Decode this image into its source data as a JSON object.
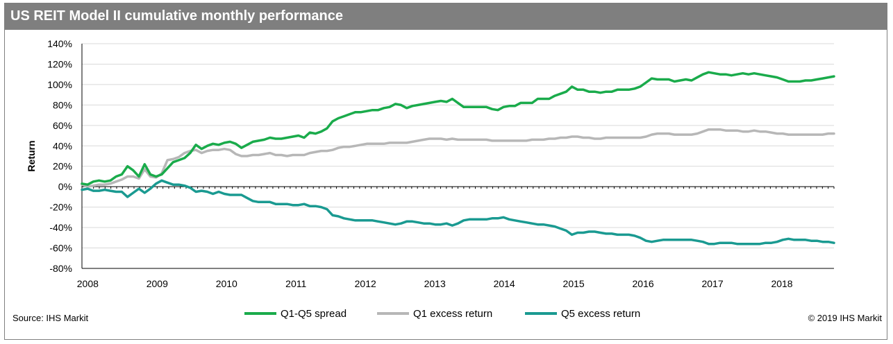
{
  "title": "US REIT Model II cumulative monthly performance",
  "source": "Source: IHS Markit",
  "copyright": "© 2019 IHS Markit",
  "colors": {
    "spread": "#1aab4b",
    "q1": "#b7b7b7",
    "q5": "#1a9a91",
    "title_bg": "#7f7f7f",
    "grid": "#d9d9d9"
  },
  "chart_data": {
    "type": "line",
    "ylabel": "Return",
    "xlabel": "",
    "ylim": [
      -0.8,
      1.4
    ],
    "yticks": [
      "140%",
      "120%",
      "100%",
      "80%",
      "60%",
      "40%",
      "20%",
      "0%",
      "-20%",
      "-40%",
      "-60%",
      "-80%"
    ],
    "xticks": [
      "2008",
      "2009",
      "2010",
      "2011",
      "2012",
      "2013",
      "2014",
      "2015",
      "2016",
      "2017",
      "2018"
    ],
    "grid": true,
    "legend_position": "bottom",
    "x_start": "2007-12",
    "x_end": "2018-10",
    "series": [
      {
        "name": "Q1-Q5 spread",
        "color": "#1aab4b",
        "values": [
          0.03,
          0.02,
          0.05,
          0.06,
          0.05,
          0.06,
          0.1,
          0.12,
          0.2,
          0.16,
          0.1,
          0.22,
          0.12,
          0.1,
          0.12,
          0.18,
          0.24,
          0.26,
          0.28,
          0.33,
          0.41,
          0.37,
          0.4,
          0.42,
          0.41,
          0.43,
          0.44,
          0.42,
          0.38,
          0.41,
          0.44,
          0.45,
          0.46,
          0.48,
          0.47,
          0.47,
          0.48,
          0.49,
          0.5,
          0.48,
          0.53,
          0.52,
          0.54,
          0.57,
          0.64,
          0.67,
          0.69,
          0.71,
          0.73,
          0.73,
          0.74,
          0.75,
          0.75,
          0.77,
          0.78,
          0.81,
          0.8,
          0.77,
          0.79,
          0.8,
          0.81,
          0.82,
          0.83,
          0.84,
          0.83,
          0.86,
          0.82,
          0.78,
          0.78,
          0.78,
          0.78,
          0.78,
          0.76,
          0.75,
          0.78,
          0.79,
          0.79,
          0.82,
          0.82,
          0.82,
          0.86,
          0.86,
          0.86,
          0.89,
          0.91,
          0.93,
          0.98,
          0.95,
          0.95,
          0.93,
          0.93,
          0.92,
          0.93,
          0.93,
          0.95,
          0.95,
          0.95,
          0.96,
          0.98,
          1.02,
          1.06,
          1.05,
          1.05,
          1.05,
          1.03,
          1.04,
          1.05,
          1.04,
          1.07,
          1.1,
          1.12,
          1.11,
          1.1,
          1.1,
          1.09,
          1.1,
          1.11,
          1.1,
          1.11,
          1.1,
          1.09,
          1.08,
          1.07,
          1.05,
          1.03,
          1.03,
          1.03,
          1.04,
          1.04,
          1.05,
          1.06,
          1.07,
          1.08
        ]
      },
      {
        "name": "Q1 excess return",
        "color": "#b7b7b7",
        "values": [
          0.02,
          0.0,
          0.01,
          0.02,
          0.02,
          0.03,
          0.05,
          0.07,
          0.1,
          0.1,
          0.08,
          0.17,
          0.1,
          0.09,
          0.13,
          0.26,
          0.27,
          0.29,
          0.33,
          0.35,
          0.36,
          0.33,
          0.35,
          0.36,
          0.36,
          0.37,
          0.36,
          0.32,
          0.3,
          0.3,
          0.31,
          0.31,
          0.32,
          0.33,
          0.31,
          0.31,
          0.3,
          0.31,
          0.31,
          0.31,
          0.33,
          0.34,
          0.35,
          0.35,
          0.36,
          0.38,
          0.39,
          0.39,
          0.4,
          0.41,
          0.42,
          0.42,
          0.42,
          0.42,
          0.43,
          0.43,
          0.43,
          0.43,
          0.44,
          0.45,
          0.46,
          0.47,
          0.47,
          0.47,
          0.46,
          0.47,
          0.46,
          0.46,
          0.46,
          0.46,
          0.46,
          0.46,
          0.45,
          0.45,
          0.45,
          0.45,
          0.45,
          0.45,
          0.45,
          0.46,
          0.46,
          0.46,
          0.47,
          0.47,
          0.48,
          0.48,
          0.49,
          0.49,
          0.48,
          0.48,
          0.47,
          0.47,
          0.48,
          0.48,
          0.48,
          0.48,
          0.48,
          0.48,
          0.48,
          0.49,
          0.51,
          0.52,
          0.52,
          0.52,
          0.51,
          0.51,
          0.51,
          0.51,
          0.52,
          0.54,
          0.56,
          0.56,
          0.56,
          0.55,
          0.55,
          0.55,
          0.54,
          0.54,
          0.55,
          0.54,
          0.54,
          0.53,
          0.52,
          0.52,
          0.51,
          0.51,
          0.51,
          0.51,
          0.51,
          0.51,
          0.51,
          0.52,
          0.52
        ]
      },
      {
        "name": "Q5 excess return",
        "color": "#1a9a91",
        "values": [
          -0.03,
          -0.02,
          -0.04,
          -0.04,
          -0.03,
          -0.04,
          -0.05,
          -0.05,
          -0.1,
          -0.06,
          -0.02,
          -0.06,
          -0.02,
          0.03,
          0.06,
          0.04,
          0.02,
          0.02,
          0.01,
          -0.01,
          -0.05,
          -0.04,
          -0.05,
          -0.07,
          -0.05,
          -0.07,
          -0.08,
          -0.08,
          -0.08,
          -0.11,
          -0.14,
          -0.15,
          -0.15,
          -0.15,
          -0.17,
          -0.17,
          -0.17,
          -0.18,
          -0.18,
          -0.17,
          -0.19,
          -0.19,
          -0.2,
          -0.22,
          -0.28,
          -0.29,
          -0.31,
          -0.32,
          -0.33,
          -0.33,
          -0.33,
          -0.33,
          -0.34,
          -0.35,
          -0.36,
          -0.37,
          -0.36,
          -0.34,
          -0.34,
          -0.35,
          -0.36,
          -0.36,
          -0.37,
          -0.37,
          -0.36,
          -0.38,
          -0.36,
          -0.33,
          -0.32,
          -0.32,
          -0.32,
          -0.32,
          -0.31,
          -0.31,
          -0.3,
          -0.32,
          -0.33,
          -0.34,
          -0.35,
          -0.36,
          -0.37,
          -0.37,
          -0.38,
          -0.39,
          -0.41,
          -0.43,
          -0.47,
          -0.45,
          -0.45,
          -0.44,
          -0.44,
          -0.45,
          -0.46,
          -0.46,
          -0.47,
          -0.47,
          -0.47,
          -0.48,
          -0.5,
          -0.53,
          -0.54,
          -0.53,
          -0.52,
          -0.52,
          -0.52,
          -0.52,
          -0.52,
          -0.52,
          -0.53,
          -0.54,
          -0.56,
          -0.56,
          -0.55,
          -0.55,
          -0.55,
          -0.56,
          -0.56,
          -0.56,
          -0.56,
          -0.56,
          -0.55,
          -0.55,
          -0.54,
          -0.52,
          -0.51,
          -0.52,
          -0.52,
          -0.52,
          -0.53,
          -0.53,
          -0.54,
          -0.54,
          -0.55
        ]
      }
    ]
  }
}
